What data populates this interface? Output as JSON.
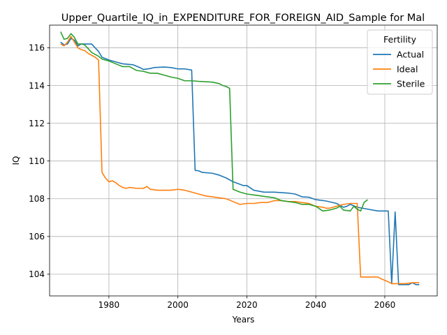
{
  "chart_data": {
    "type": "line",
    "title": "Upper_Quartile_IQ_in_EXPENDITURE_FOR_FOREIGN_AID_Sample for Mal",
    "xlabel": "Years",
    "ylabel": "IQ",
    "xlim": [
      1962.8,
      2075.2
    ],
    "ylim": [
      102.85,
      117.2
    ],
    "xticks": [
      1980,
      2000,
      2020,
      2040,
      2060
    ],
    "yticks": [
      104,
      106,
      108,
      110,
      112,
      114,
      116
    ],
    "grid": true,
    "legend": {
      "title": "Fertility",
      "placement": "top-right"
    },
    "series": [
      {
        "name": "Actual",
        "color": "#1f77b4",
        "points": [
          [
            1966,
            116.3
          ],
          [
            1967,
            116.15
          ],
          [
            1968,
            116.2
          ],
          [
            1969,
            116.5
          ],
          [
            1970,
            116.4
          ],
          [
            1971,
            116.1
          ],
          [
            1972,
            116.2
          ],
          [
            1975,
            116.2
          ],
          [
            1976,
            116.0
          ],
          [
            1977,
            115.8
          ],
          [
            1978,
            115.5
          ],
          [
            1980,
            115.35
          ],
          [
            1982,
            115.25
          ],
          [
            1984,
            115.15
          ],
          [
            1987,
            115.1
          ],
          [
            1989,
            114.95
          ],
          [
            1990,
            114.85
          ],
          [
            1992,
            114.9
          ],
          [
            1993,
            114.95
          ],
          [
            1996,
            114.98
          ],
          [
            1998,
            114.95
          ],
          [
            2000,
            114.88
          ],
          [
            2002,
            114.88
          ],
          [
            2004,
            114.82
          ],
          [
            2005,
            109.5
          ],
          [
            2006,
            109.48
          ],
          [
            2007,
            109.4
          ],
          [
            2010,
            109.35
          ],
          [
            2012,
            109.25
          ],
          [
            2014,
            109.1
          ],
          [
            2016,
            108.9
          ],
          [
            2019,
            108.7
          ],
          [
            2020,
            108.7
          ],
          [
            2022,
            108.45
          ],
          [
            2025,
            108.35
          ],
          [
            2027,
            108.35
          ],
          [
            2028,
            108.35
          ],
          [
            2032,
            108.3
          ],
          [
            2034,
            108.25
          ],
          [
            2036,
            108.1
          ],
          [
            2038,
            108.08
          ],
          [
            2040,
            107.95
          ],
          [
            2043,
            107.88
          ],
          [
            2046,
            107.75
          ],
          [
            2048,
            107.55
          ],
          [
            2049,
            107.6
          ],
          [
            2050,
            107.7
          ],
          [
            2052,
            107.55
          ],
          [
            2055,
            107.45
          ],
          [
            2058,
            107.35
          ],
          [
            2061,
            107.35
          ],
          [
            2062,
            103.5
          ],
          [
            2063,
            107.3
          ],
          [
            2064,
            103.45
          ],
          [
            2065,
            103.45
          ],
          [
            2067,
            103.45
          ],
          [
            2068,
            103.55
          ],
          [
            2069,
            103.45
          ],
          [
            2070,
            103.45
          ]
        ]
      },
      {
        "name": "Ideal",
        "color": "#ff7f0e",
        "points": [
          [
            1966,
            116.2
          ],
          [
            1967,
            116.1
          ],
          [
            1968,
            116.3
          ],
          [
            1969,
            116.6
          ],
          [
            1970,
            116.3
          ],
          [
            1971,
            116.0
          ],
          [
            1972,
            115.9
          ],
          [
            1973,
            115.85
          ],
          [
            1974,
            115.7
          ],
          [
            1975,
            115.6
          ],
          [
            1976,
            115.5
          ],
          [
            1977,
            115.35
          ],
          [
            1978,
            109.4
          ],
          [
            1979,
            109.1
          ],
          [
            1980,
            108.9
          ],
          [
            1981,
            108.95
          ],
          [
            1982,
            108.85
          ],
          [
            1983,
            108.7
          ],
          [
            1984,
            108.6
          ],
          [
            1985,
            108.55
          ],
          [
            1986,
            108.6
          ],
          [
            1988,
            108.55
          ],
          [
            1990,
            108.55
          ],
          [
            1991,
            108.65
          ],
          [
            1992,
            108.5
          ],
          [
            1994,
            108.45
          ],
          [
            1996,
            108.45
          ],
          [
            1998,
            108.45
          ],
          [
            2000,
            108.5
          ],
          [
            2002,
            108.45
          ],
          [
            2004,
            108.35
          ],
          [
            2006,
            108.25
          ],
          [
            2008,
            108.15
          ],
          [
            2010,
            108.1
          ],
          [
            2012,
            108.05
          ],
          [
            2014,
            108.0
          ],
          [
            2016,
            107.85
          ],
          [
            2018,
            107.7
          ],
          [
            2020,
            107.75
          ],
          [
            2022,
            107.75
          ],
          [
            2024,
            107.8
          ],
          [
            2026,
            107.8
          ],
          [
            2028,
            107.9
          ],
          [
            2030,
            107.9
          ],
          [
            2032,
            107.85
          ],
          [
            2034,
            107.85
          ],
          [
            2036,
            107.8
          ],
          [
            2038,
            107.75
          ],
          [
            2040,
            107.6
          ],
          [
            2042,
            107.55
          ],
          [
            2043,
            107.5
          ],
          [
            2044,
            107.5
          ],
          [
            2046,
            107.6
          ],
          [
            2048,
            107.7
          ],
          [
            2050,
            107.75
          ],
          [
            2052,
            107.75
          ],
          [
            2053,
            103.85
          ],
          [
            2054,
            103.85
          ],
          [
            2058,
            103.85
          ],
          [
            2059,
            103.75
          ],
          [
            2061,
            103.6
          ],
          [
            2062,
            103.5
          ],
          [
            2064,
            103.5
          ],
          [
            2066,
            103.5
          ],
          [
            2068,
            103.55
          ],
          [
            2070,
            103.55
          ]
        ]
      },
      {
        "name": "Sterile",
        "color": "#2ca02c",
        "points": [
          [
            1966,
            116.85
          ],
          [
            1967,
            116.45
          ],
          [
            1968,
            116.5
          ],
          [
            1969,
            116.75
          ],
          [
            1970,
            116.55
          ],
          [
            1971,
            116.2
          ],
          [
            1972,
            116.2
          ],
          [
            1973,
            116.15
          ],
          [
            1974,
            115.95
          ],
          [
            1975,
            115.75
          ],
          [
            1976,
            115.65
          ],
          [
            1977,
            115.55
          ],
          [
            1978,
            115.4
          ],
          [
            1980,
            115.3
          ],
          [
            1982,
            115.15
          ],
          [
            1984,
            115.0
          ],
          [
            1986,
            115.0
          ],
          [
            1988,
            114.8
          ],
          [
            1990,
            114.75
          ],
          [
            1992,
            114.65
          ],
          [
            1994,
            114.65
          ],
          [
            1996,
            114.55
          ],
          [
            1998,
            114.45
          ],
          [
            2000,
            114.38
          ],
          [
            2002,
            114.25
          ],
          [
            2004,
            114.25
          ],
          [
            2006,
            114.22
          ],
          [
            2008,
            114.2
          ],
          [
            2010,
            114.18
          ],
          [
            2012,
            114.1
          ],
          [
            2013,
            114.0
          ],
          [
            2014,
            113.95
          ],
          [
            2015,
            113.85
          ],
          [
            2016,
            108.5
          ],
          [
            2018,
            108.35
          ],
          [
            2020,
            108.25
          ],
          [
            2022,
            108.2
          ],
          [
            2024,
            108.15
          ],
          [
            2026,
            108.1
          ],
          [
            2028,
            108.05
          ],
          [
            2030,
            107.9
          ],
          [
            2032,
            107.85
          ],
          [
            2034,
            107.8
          ],
          [
            2036,
            107.7
          ],
          [
            2038,
            107.7
          ],
          [
            2040,
            107.6
          ],
          [
            2042,
            107.35
          ],
          [
            2044,
            107.4
          ],
          [
            2046,
            107.5
          ],
          [
            2047,
            107.6
          ],
          [
            2048,
            107.4
          ],
          [
            2050,
            107.35
          ],
          [
            2051,
            107.6
          ],
          [
            2052,
            107.45
          ],
          [
            2053,
            107.35
          ],
          [
            2054,
            107.8
          ],
          [
            2055,
            107.95
          ]
        ]
      }
    ]
  }
}
